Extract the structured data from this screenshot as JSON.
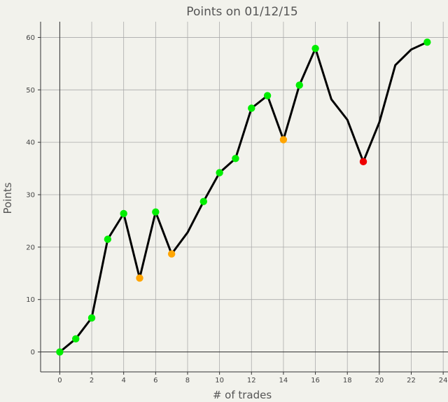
{
  "chart_data": {
    "type": "line",
    "title": "Points on 01/12/15",
    "xlabel": "# of trades",
    "ylabel": "Points",
    "xlim": [
      -1.2,
      24.3
    ],
    "ylim": [
      -3.8,
      63
    ],
    "grid": true,
    "x_ticks": [
      0,
      2,
      4,
      6,
      8,
      10,
      12,
      14,
      16,
      18,
      20,
      22,
      24
    ],
    "y_ticks": [
      0,
      10,
      20,
      30,
      40,
      50,
      60
    ],
    "reference_lines": {
      "x": [
        0,
        20
      ],
      "y": [
        0
      ]
    },
    "series": [
      {
        "x": [
          0,
          1,
          2,
          3,
          4,
          5,
          6,
          7,
          8,
          9,
          10,
          11,
          12,
          13,
          14,
          15,
          16,
          17,
          18,
          19,
          20,
          21,
          22,
          23
        ],
        "y": [
          0,
          2.5,
          6.5,
          21.5,
          26.4,
          14.1,
          26.7,
          18.7,
          22.8,
          28.7,
          34.2,
          36.9,
          46.5,
          48.9,
          40.5,
          50.9,
          57.9,
          48.2,
          44.3,
          36.3,
          43.8,
          54.7,
          57.7,
          59.1
        ],
        "line_color": "#000000",
        "markers": [
          {
            "x": 0,
            "y": 0,
            "color": "#00ee00"
          },
          {
            "x": 1,
            "y": 2.5,
            "color": "#00ee00"
          },
          {
            "x": 2,
            "y": 6.5,
            "color": "#00ee00"
          },
          {
            "x": 3,
            "y": 21.5,
            "color": "#00ee00"
          },
          {
            "x": 4,
            "y": 26.4,
            "color": "#00ee00"
          },
          {
            "x": 5,
            "y": 14.1,
            "color": "#ffa500"
          },
          {
            "x": 6,
            "y": 26.7,
            "color": "#00ee00"
          },
          {
            "x": 7,
            "y": 18.7,
            "color": "#ffa500"
          },
          {
            "x": 9,
            "y": 28.7,
            "color": "#00ee00"
          },
          {
            "x": 10,
            "y": 34.2,
            "color": "#00ee00"
          },
          {
            "x": 11,
            "y": 36.9,
            "color": "#00ee00"
          },
          {
            "x": 12,
            "y": 46.5,
            "color": "#00ee00"
          },
          {
            "x": 13,
            "y": 48.9,
            "color": "#00ee00"
          },
          {
            "x": 14,
            "y": 40.5,
            "color": "#ffa500"
          },
          {
            "x": 15,
            "y": 50.9,
            "color": "#00ee00"
          },
          {
            "x": 16,
            "y": 57.9,
            "color": "#00ee00"
          },
          {
            "x": 19,
            "y": 36.3,
            "color": "#ee0000"
          },
          {
            "x": 23,
            "y": 59.1,
            "color": "#00ee00"
          }
        ]
      }
    ]
  }
}
